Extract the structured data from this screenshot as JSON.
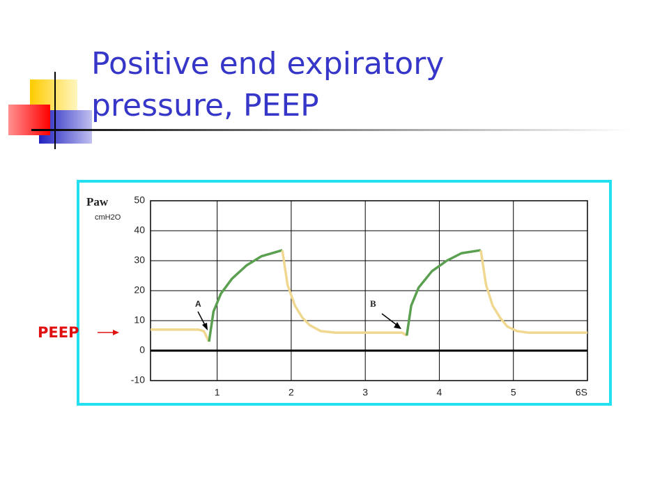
{
  "title": "Positive end expiratory pressure, PEEP",
  "chart_data": {
    "type": "line",
    "ylabel": "Paw",
    "yunit": "cmH2O",
    "xlim": [
      0.1,
      6
    ],
    "ylim": [
      -10,
      50
    ],
    "xticks": [
      1,
      2,
      3,
      4,
      5,
      {
        "value": 6,
        "label": "6S"
      }
    ],
    "yticks": [
      50,
      40,
      30,
      20,
      10,
      0,
      -10
    ],
    "grid": true,
    "annotations": [
      "A",
      "B",
      "PEEP"
    ],
    "series": [
      {
        "color": "#f0d890",
        "x": [
          0.1,
          0.75,
          0.82,
          0.89
        ],
        "values": [
          7,
          7,
          6.5,
          3
        ]
      },
      {
        "color": "#5aa050",
        "x": [
          0.89,
          0.95,
          1.05,
          1.2,
          1.4,
          1.6,
          1.88
        ],
        "values": [
          3,
          13,
          19,
          24,
          28.5,
          31.5,
          33.5
        ]
      },
      {
        "color": "#f0d890",
        "x": [
          1.88,
          1.95,
          2.05,
          2.15,
          2.25,
          2.4,
          2.6,
          3.5,
          3.56
        ],
        "values": [
          33.5,
          22,
          15,
          11,
          8.5,
          6.5,
          6,
          6,
          5
        ]
      },
      {
        "color": "#5aa050",
        "x": [
          3.56,
          3.62,
          3.72,
          3.9,
          4.1,
          4.3,
          4.56
        ],
        "values": [
          5,
          15,
          21,
          26.5,
          30,
          32.5,
          33.5
        ]
      },
      {
        "color": "#f0d890",
        "x": [
          4.56,
          4.63,
          4.72,
          4.82,
          4.92,
          5.05,
          5.2,
          6
        ],
        "values": [
          33.5,
          22,
          15,
          11,
          8,
          6.5,
          6,
          6
        ]
      }
    ]
  }
}
